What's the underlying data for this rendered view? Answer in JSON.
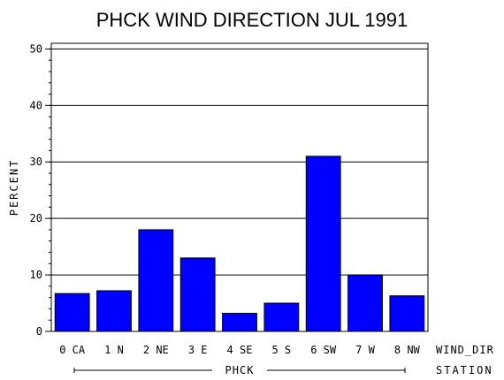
{
  "chart_data": {
    "type": "bar",
    "title": "PHCK WIND DIRECTION JUL 1991",
    "ylabel": "PERCENT",
    "xlabel": "WIND_DIR",
    "group_label": "PHCK",
    "group_axis_label": "STATION",
    "categories": [
      "0 CA",
      "1 N",
      "2 NE",
      "3 E",
      "4 SE",
      "5 S",
      "6 SW",
      "7 W",
      "8 NW"
    ],
    "values": [
      6.7,
      7.2,
      18.0,
      13.0,
      3.2,
      5.0,
      31.0,
      10.0,
      6.3
    ],
    "yticks": [
      0,
      10,
      20,
      30,
      40,
      50
    ],
    "ylim": [
      0,
      51
    ],
    "grid": true,
    "bar_color": "#0000ff"
  }
}
